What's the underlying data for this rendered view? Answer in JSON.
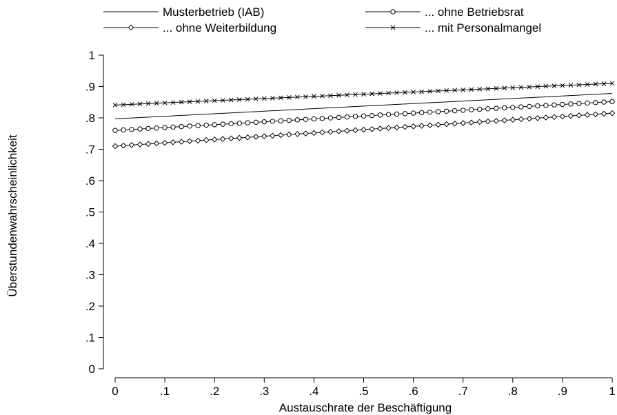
{
  "chart_data": {
    "type": "line",
    "xlabel": "Austauschrate der Beschäftigung",
    "ylabel": "Überstundenwahrscheinlichkeit",
    "xlim": [
      0,
      1
    ],
    "ylim": [
      0,
      1
    ],
    "xticks": [
      0,
      0.1,
      0.2,
      0.3,
      0.4,
      0.5,
      0.6,
      0.7,
      0.8,
      0.9,
      1
    ],
    "xtick_labels": [
      "0",
      ".1",
      ".2",
      ".3",
      ".4",
      ".5",
      ".6",
      ".7",
      ".8",
      ".9",
      "1"
    ],
    "yticks": [
      0,
      0.1,
      0.2,
      0.3,
      0.4,
      0.5,
      0.6,
      0.7,
      0.8,
      0.9,
      1
    ],
    "ytick_labels": [
      "0",
      ".1",
      ".2",
      ".3",
      ".4",
      ".5",
      ".6",
      ".7",
      ".8",
      ".9",
      "1"
    ],
    "grid": false,
    "legend_position": "top",
    "series": [
      {
        "name": "Musterbetrieb (IAB)",
        "marker": "none",
        "x": [
          0,
          1
        ],
        "values": [
          0.797,
          0.878
        ]
      },
      {
        "name": "... ohne Betriebsrat",
        "marker": "circle",
        "x": [
          0,
          1
        ],
        "values": [
          0.76,
          0.852
        ]
      },
      {
        "name": "... ohne Weiterbildung",
        "marker": "diamond",
        "x": [
          0,
          1
        ],
        "values": [
          0.71,
          0.815
        ]
      },
      {
        "name": "... mit Personalmangel",
        "marker": "x",
        "x": [
          0,
          1
        ],
        "values": [
          0.841,
          0.91
        ]
      }
    ],
    "colors": {
      "line": "#000000",
      "background": "#ffffff"
    }
  }
}
